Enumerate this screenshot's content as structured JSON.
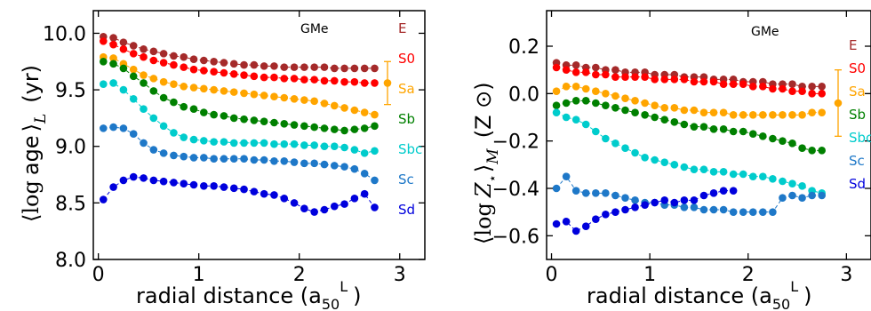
{
  "colors": {
    "E": "#a52a2a",
    "S0": "#ff0000",
    "Sa": "#ffa500",
    "Sb": "#008000",
    "Sbc": "#00cccc",
    "Sc": "#1e78c8",
    "Sd": "#0000dd"
  },
  "chart_data": [
    {
      "type": "scatter",
      "tag": "GMe",
      "xlabel": "radial distance (a",
      "xlabel_sub": "50",
      "xlabel_sup": "L",
      "xlabel_end": ")",
      "ylabel_text": "age",
      "ylabel_left": "⟨log",
      "ylabel_right": "⟩",
      "ylabel_sub": "L",
      "ylabel_unit": "(yr)",
      "xlim": [
        -0.05,
        3.25
      ],
      "ylim": [
        8.0,
        10.2
      ],
      "xticks": [
        "0",
        "1",
        "2",
        "3"
      ],
      "yticks": [
        "8.0",
        "8.5",
        "9.0",
        "9.5",
        "10.0"
      ],
      "legend": [
        "E",
        "S0",
        "Sa",
        "Sb",
        "Sbc",
        "Sc",
        "Sd"
      ],
      "errorbar": {
        "y": 9.56,
        "low": 9.37,
        "high": 9.75,
        "color": "#ffa500"
      },
      "series": [
        {
          "name": "E",
          "color": "#a52a2a",
          "x0": 0.05,
          "dx": 0.1,
          "values": [
            9.97,
            9.96,
            9.92,
            9.89,
            9.86,
            9.84,
            9.82,
            9.8,
            9.79,
            9.77,
            9.76,
            9.75,
            9.74,
            9.73,
            9.72,
            9.72,
            9.71,
            9.71,
            9.7,
            9.7,
            9.7,
            9.7,
            9.7,
            9.69,
            9.69,
            9.69,
            9.69,
            9.69
          ]
        },
        {
          "name": "S0",
          "color": "#ff0000",
          "x0": 0.05,
          "dx": 0.1,
          "values": [
            9.93,
            9.9,
            9.86,
            9.82,
            9.79,
            9.76,
            9.74,
            9.72,
            9.7,
            9.68,
            9.67,
            9.66,
            9.65,
            9.64,
            9.63,
            9.62,
            9.61,
            9.61,
            9.6,
            9.6,
            9.59,
            9.59,
            9.58,
            9.58,
            9.57,
            9.57,
            9.56,
            9.56
          ]
        },
        {
          "name": "Sa",
          "color": "#ffa500",
          "x0": 0.05,
          "dx": 0.1,
          "values": [
            9.79,
            9.78,
            9.73,
            9.68,
            9.63,
            9.6,
            9.57,
            9.55,
            9.53,
            9.52,
            9.51,
            9.5,
            9.49,
            9.48,
            9.47,
            9.46,
            9.45,
            9.44,
            9.43,
            9.42,
            9.41,
            9.4,
            9.38,
            9.36,
            9.34,
            9.32,
            9.3,
            9.28
          ]
        },
        {
          "name": "Sb",
          "color": "#008000",
          "x0": 0.05,
          "dx": 0.1,
          "values": [
            9.75,
            9.73,
            9.69,
            9.62,
            9.56,
            9.49,
            9.43,
            9.39,
            9.35,
            9.33,
            9.3,
            9.28,
            9.27,
            9.25,
            9.24,
            9.23,
            9.22,
            9.21,
            9.2,
            9.19,
            9.18,
            9.17,
            9.16,
            9.15,
            9.14,
            9.15,
            9.16,
            9.18
          ]
        },
        {
          "name": "Sbc",
          "color": "#00cccc",
          "x0": 0.05,
          "dx": 0.1,
          "values": [
            9.55,
            9.56,
            9.5,
            9.42,
            9.33,
            9.25,
            9.18,
            9.12,
            9.08,
            9.06,
            9.05,
            9.04,
            9.04,
            9.03,
            9.03,
            9.03,
            9.03,
            9.02,
            9.02,
            9.02,
            9.01,
            9.01,
            9.0,
            9.0,
            8.99,
            8.97,
            8.94,
            8.96
          ]
        },
        {
          "name": "Sc",
          "color": "#1e78c8",
          "x0": 0.05,
          "dx": 0.1,
          "values": [
            9.16,
            9.17,
            9.16,
            9.11,
            9.03,
            8.97,
            8.94,
            8.92,
            8.91,
            8.9,
            8.9,
            8.89,
            8.89,
            8.89,
            8.89,
            8.88,
            8.88,
            8.87,
            8.87,
            8.86,
            8.85,
            8.85,
            8.84,
            8.83,
            8.82,
            8.8,
            8.76,
            8.7
          ]
        },
        {
          "name": "Sd",
          "color": "#0000dd",
          "x0": 0.05,
          "dx": 0.1,
          "values": [
            8.53,
            8.64,
            8.7,
            8.73,
            8.72,
            8.7,
            8.69,
            8.68,
            8.67,
            8.66,
            8.65,
            8.65,
            8.64,
            8.63,
            8.62,
            8.6,
            8.58,
            8.57,
            8.54,
            8.5,
            8.45,
            8.42,
            8.44,
            8.47,
            8.49,
            8.54,
            8.58,
            8.46
          ]
        }
      ]
    },
    {
      "type": "scatter",
      "tag": "GMe",
      "xlabel": "radial distance (a",
      "xlabel_sub": "50",
      "xlabel_sup": "L",
      "xlabel_end": ")",
      "ylabel_left": "⟨log",
      "ylabel_var": "Z",
      "ylabel_star": "⋆",
      "ylabel_right": "⟩",
      "ylabel_sub": "M",
      "ylabel_unit": "(Z ⊙)",
      "xlim": [
        -0.05,
        3.25
      ],
      "ylim": [
        -0.7,
        0.35
      ],
      "xticks": [
        "0",
        "1",
        "2",
        "3"
      ],
      "yticks": [
        "−0.6",
        "−0.4",
        "−0.2",
        "0.0",
        "0.2"
      ],
      "ytick_values": [
        -0.6,
        -0.4,
        -0.2,
        0.0,
        0.2
      ],
      "legend": [
        "E",
        "S0",
        "Sa",
        "Sb",
        "Sbc",
        "Sc",
        "Sd"
      ],
      "errorbar": {
        "y": -0.04,
        "low": -0.18,
        "high": 0.1,
        "color": "#ffa500"
      },
      "series": [
        {
          "name": "E",
          "color": "#a52a2a",
          "x0": 0.05,
          "dx": 0.1,
          "values": [
            0.13,
            0.12,
            0.12,
            0.11,
            0.11,
            0.1,
            0.1,
            0.09,
            0.09,
            0.09,
            0.08,
            0.08,
            0.08,
            0.07,
            0.07,
            0.07,
            0.06,
            0.06,
            0.06,
            0.05,
            0.05,
            0.05,
            0.04,
            0.04,
            0.04,
            0.03,
            0.03,
            0.03
          ]
        },
        {
          "name": "S0",
          "color": "#ff0000",
          "x0": 0.05,
          "dx": 0.1,
          "values": [
            0.11,
            0.1,
            0.09,
            0.09,
            0.08,
            0.08,
            0.07,
            0.07,
            0.07,
            0.07,
            0.06,
            0.06,
            0.06,
            0.06,
            0.05,
            0.05,
            0.05,
            0.04,
            0.04,
            0.04,
            0.03,
            0.03,
            0.02,
            0.02,
            0.01,
            0.01,
            0.0,
            0.0
          ]
        },
        {
          "name": "Sa",
          "color": "#ffa500",
          "x0": 0.05,
          "dx": 0.1,
          "values": [
            0.01,
            0.03,
            0.03,
            0.02,
            0.01,
            0.0,
            -0.01,
            -0.02,
            -0.03,
            -0.04,
            -0.05,
            -0.06,
            -0.06,
            -0.07,
            -0.07,
            -0.08,
            -0.08,
            -0.08,
            -0.09,
            -0.09,
            -0.09,
            -0.09,
            -0.09,
            -0.09,
            -0.09,
            -0.09,
            -0.08,
            -0.08
          ]
        },
        {
          "name": "Sb",
          "color": "#008000",
          "x0": 0.05,
          "dx": 0.1,
          "values": [
            -0.05,
            -0.04,
            -0.03,
            -0.03,
            -0.04,
            -0.05,
            -0.06,
            -0.07,
            -0.08,
            -0.09,
            -0.1,
            -0.11,
            -0.12,
            -0.13,
            -0.14,
            -0.14,
            -0.15,
            -0.15,
            -0.16,
            -0.16,
            -0.17,
            -0.18,
            -0.19,
            -0.2,
            -0.21,
            -0.23,
            -0.24,
            -0.24
          ]
        },
        {
          "name": "Sbc",
          "color": "#00cccc",
          "x0": 0.05,
          "dx": 0.1,
          "values": [
            -0.08,
            -0.1,
            -0.11,
            -0.13,
            -0.16,
            -0.19,
            -0.21,
            -0.23,
            -0.25,
            -0.27,
            -0.28,
            -0.29,
            -0.3,
            -0.31,
            -0.32,
            -0.32,
            -0.33,
            -0.33,
            -0.34,
            -0.34,
            -0.35,
            -0.35,
            -0.36,
            -0.37,
            -0.38,
            -0.39,
            -0.41,
            -0.42
          ]
        },
        {
          "name": "Sc",
          "color": "#1e78c8",
          "x0": 0.05,
          "dx": 0.1,
          "values": [
            -0.4,
            -0.35,
            -0.41,
            -0.42,
            -0.42,
            -0.42,
            -0.43,
            -0.44,
            -0.45,
            -0.46,
            -0.46,
            -0.47,
            -0.47,
            -0.48,
            -0.48,
            -0.49,
            -0.49,
            -0.49,
            -0.5,
            -0.5,
            -0.5,
            -0.5,
            -0.5,
            -0.44,
            -0.43,
            -0.44,
            -0.43,
            -0.43
          ]
        },
        {
          "name": "Sd",
          "color": "#0000dd",
          "x0": 0.05,
          "dx": 0.1,
          "values": [
            -0.55,
            -0.54,
            -0.58,
            -0.56,
            -0.53,
            -0.51,
            -0.5,
            -0.49,
            -0.48,
            -0.47,
            -0.46,
            -0.45,
            -0.46,
            -0.45,
            -0.45,
            -0.43,
            -0.42,
            -0.41,
            -0.41
          ]
        }
      ]
    }
  ]
}
